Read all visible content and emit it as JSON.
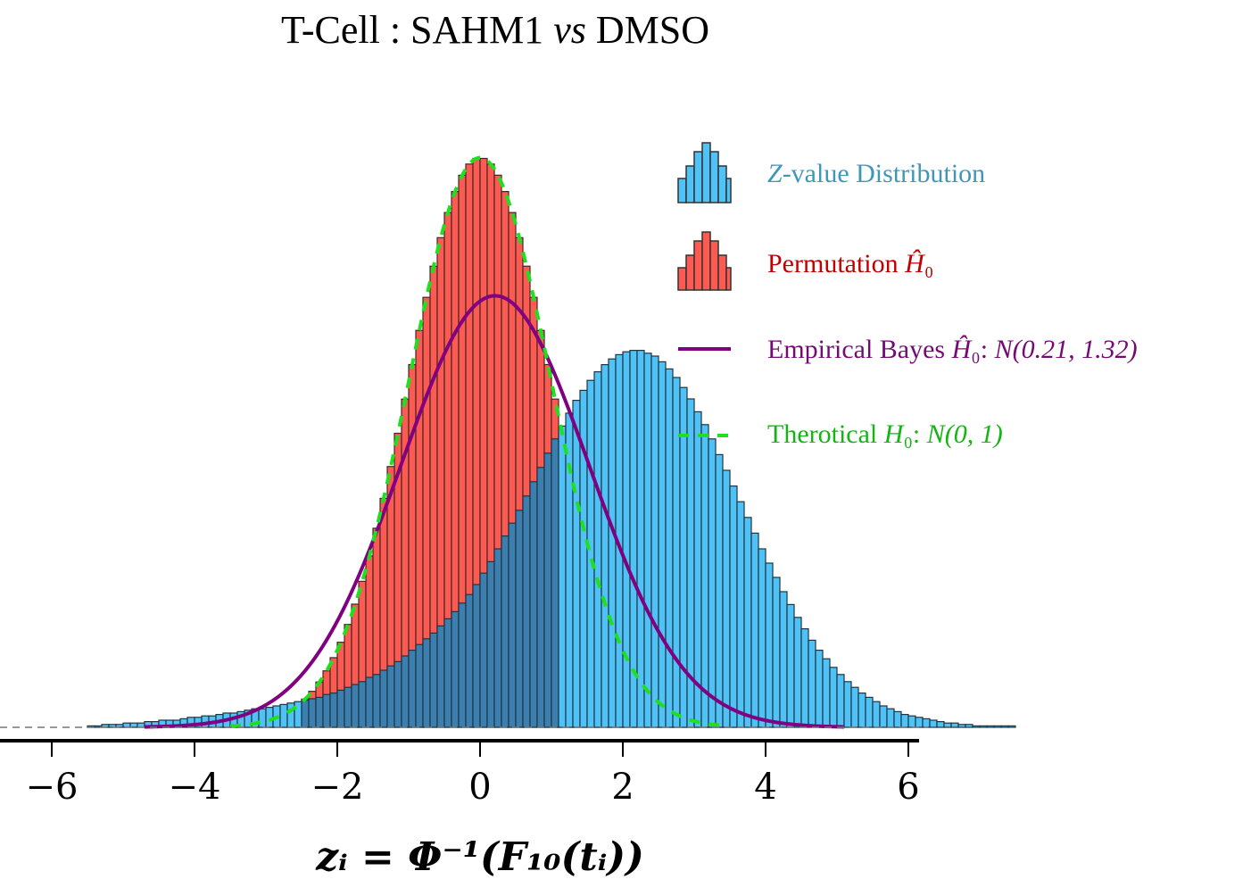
{
  "chart_data": {
    "type": "histogram",
    "title_parts": [
      "T-Cell : SAHM1 ",
      "vs",
      " DMSO"
    ],
    "xlabel": "zᵢ = Φ⁻¹(F₁₀(tᵢ))",
    "ylabel": "",
    "xlim": [
      -6.7,
      6.2
    ],
    "ylim": [
      0,
      0.405
    ],
    "xticks": [
      -6,
      -4,
      -2,
      0,
      2,
      4,
      6
    ],
    "xtick_labels": [
      "−6",
      "−4",
      "−2",
      "0",
      "2",
      "4",
      "6"
    ],
    "grid": false,
    "legend_position": "top-right",
    "bin_width": 0.1,
    "x_bin_start": -5.5,
    "zvalue_density": [
      0.001,
      0.001,
      0.002,
      0.002,
      0.002,
      0.003,
      0.003,
      0.003,
      0.004,
      0.004,
      0.005,
      0.005,
      0.005,
      0.006,
      0.007,
      0.007,
      0.008,
      0.008,
      0.009,
      0.01,
      0.01,
      0.011,
      0.012,
      0.013,
      0.013,
      0.014,
      0.015,
      0.016,
      0.017,
      0.018,
      0.019,
      0.02,
      0.021,
      0.023,
      0.024,
      0.026,
      0.028,
      0.03,
      0.032,
      0.035,
      0.037,
      0.04,
      0.043,
      0.046,
      0.05,
      0.054,
      0.058,
      0.062,
      0.066,
      0.071,
      0.076,
      0.081,
      0.087,
      0.093,
      0.1,
      0.108,
      0.116,
      0.125,
      0.134,
      0.143,
      0.152,
      0.162,
      0.172,
      0.182,
      0.192,
      0.202,
      0.211,
      0.22,
      0.229,
      0.236,
      0.243,
      0.249,
      0.254,
      0.258,
      0.261,
      0.263,
      0.264,
      0.264,
      0.262,
      0.26,
      0.256,
      0.251,
      0.245,
      0.238,
      0.23,
      0.221,
      0.212,
      0.202,
      0.191,
      0.18,
      0.169,
      0.158,
      0.147,
      0.136,
      0.125,
      0.115,
      0.105,
      0.095,
      0.086,
      0.077,
      0.069,
      0.061,
      0.054,
      0.048,
      0.042,
      0.037,
      0.032,
      0.028,
      0.024,
      0.021,
      0.018,
      0.015,
      0.013,
      0.011,
      0.009,
      0.008,
      0.007,
      0.006,
      0.005,
      0.004,
      0.003,
      0.003,
      0.002,
      0.002,
      0.001,
      0.001,
      0.001,
      0.001,
      0.001,
      0.001
    ],
    "permutation_range": [
      -3.6,
      3.6
    ],
    "series": [
      {
        "name": "Z-value Distribution",
        "kind": "histogram",
        "color": "#4fc3f7"
      },
      {
        "name": "Permutation Ĥ₀",
        "kind": "histogram",
        "color": "#ff5a52"
      },
      {
        "name": "Empirical Bayes Ĥ₀: N(0.21, 1.32)",
        "kind": "line",
        "color": "#800080",
        "mean": 0.21,
        "sd": 1.32
      },
      {
        "name": "Therotical H₀: N(0, 1)",
        "kind": "dashed-line",
        "color": "#1ee01e",
        "mean": 0,
        "sd": 1
      }
    ]
  },
  "legend": [
    {
      "prefix": "",
      "italic": "Z",
      "text": "-value Distribution",
      "math": "",
      "color": "#3f97b8"
    },
    {
      "prefix": "Permutation ",
      "italic": "Ĥ",
      "text": "₀",
      "math": "",
      "color": "#c00000"
    },
    {
      "prefix": "Empirical Bayes ",
      "italic": "Ĥ",
      "text": "₀: ",
      "math": "N(0.21, 1.32)",
      "color": "#740b74"
    },
    {
      "prefix": "Therotical ",
      "italic": "H",
      "text": "₀: ",
      "math": "N(0, 1)",
      "color": "#14b414"
    }
  ]
}
